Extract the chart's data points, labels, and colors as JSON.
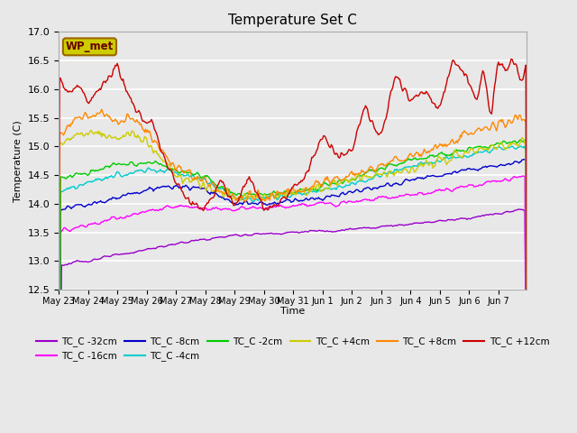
{
  "title": "Temperature Set C",
  "xlabel": "Time",
  "ylabel": "Temperature (C)",
  "ylim": [
    12.5,
    17.0
  ],
  "yticks": [
    12.5,
    13.0,
    13.5,
    14.0,
    14.5,
    15.0,
    15.5,
    16.0,
    16.5,
    17.0
  ],
  "bg_color": "#e8e8e8",
  "plot_bg_color": "#e8e8e8",
  "series_colors": {
    "TC_C -32cm": "#9900cc",
    "TC_C -16cm": "#ff00ff",
    "TC_C -8cm": "#0000cc",
    "TC_C -4cm": "#00cccc",
    "TC_C -2cm": "#00cc00",
    "TC_C +4cm": "#cccc00",
    "TC_C +8cm": "#ff8800",
    "TC_C +12cm": "#cc0000"
  },
  "wp_met_box_color": "#cccc00",
  "wp_met_text_color": "#660000",
  "n_points": 480,
  "xtick_labels": [
    "May 23",
    "May 24",
    "May 25",
    "May 26",
    "May 27",
    "May 28",
    "May 29",
    "May 30",
    "May 31",
    "Jun 1",
    "Jun 2",
    "Jun 3",
    "Jun 4",
    "Jun 5",
    "Jun 6",
    "Jun 7"
  ],
  "legend_ncol": 6,
  "legend_row2": [
    "TC_C +8cm",
    "TC_C +12cm"
  ]
}
